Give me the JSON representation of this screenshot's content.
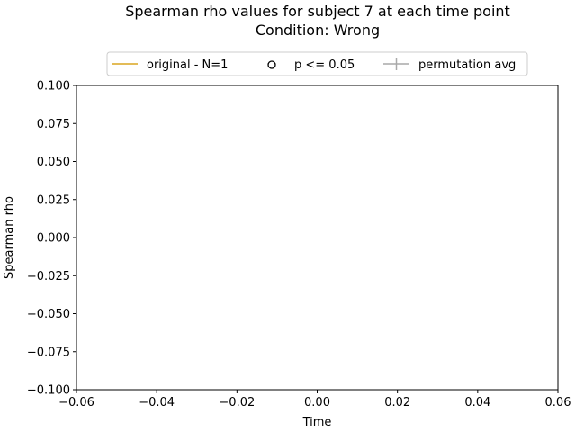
{
  "chart_data": {
    "type": "line",
    "title": "Spearman rho values for subject 7 at each time point",
    "subtitle": "Condition: Wrong",
    "xlabel": "Time",
    "ylabel": "Spearman rho",
    "xlim": [
      -0.06,
      0.06
    ],
    "ylim": [
      -0.1,
      0.1
    ],
    "x_ticks": [
      -0.06,
      -0.04,
      -0.02,
      0.0,
      0.02,
      0.04,
      0.06
    ],
    "x_tick_labels": [
      "−0.06",
      "−0.04",
      "−0.02",
      "0.00",
      "0.02",
      "0.04",
      "0.06"
    ],
    "y_ticks": [
      0.1,
      0.075,
      0.05,
      0.025,
      0.0,
      -0.025,
      -0.05,
      -0.075,
      -0.1
    ],
    "y_tick_labels": [
      "0.100",
      "0.075",
      "0.050",
      "0.025",
      "0.000",
      "−0.025",
      "−0.050",
      "−0.075",
      "−0.100"
    ],
    "grid": false,
    "legend_position": "top-center",
    "legend": [
      {
        "label": "original - N=1",
        "marker": "line",
        "color": "#DAA520"
      },
      {
        "label": "p <= 0.05",
        "marker": "circle-open",
        "color": "#000000"
      },
      {
        "label": "permutation avg",
        "marker": "line-plus",
        "color": "#A9A9A9"
      }
    ],
    "series": [
      {
        "name": "original - N=1",
        "x": [],
        "y": []
      },
      {
        "name": "p <= 0.05",
        "x": [],
        "y": []
      },
      {
        "name": "permutation avg",
        "x": [],
        "y": []
      }
    ]
  }
}
